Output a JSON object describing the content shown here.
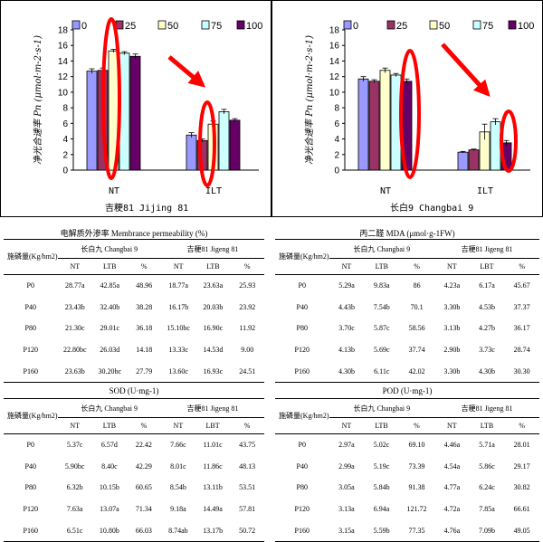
{
  "chart_data": [
    {
      "type": "bar",
      "title": "吉粳81 Jijing 81",
      "ylabel": "净光合速率 Pn (μmol·m-2·s-1)",
      "categories": [
        "NT",
        "ILT"
      ],
      "ylim": [
        0,
        18
      ],
      "yticks": [
        0,
        2,
        4,
        6,
        8,
        10,
        12,
        14,
        16,
        18
      ],
      "legend_position": "top-left",
      "series": [
        {
          "name": "0",
          "values": [
            12.7,
            4.5
          ],
          "errors": [
            0.3,
            0.3
          ],
          "color": "#9999FF"
        },
        {
          "name": "25",
          "values": [
            12.8,
            3.8
          ],
          "errors": [
            0.3,
            0.2
          ],
          "color": "#993366"
        },
        {
          "name": "50",
          "values": [
            15.3,
            5.9
          ],
          "errors": [
            0.2,
            0.4
          ],
          "color": "#FFFFCC"
        },
        {
          "name": "75",
          "values": [
            15.0,
            7.5
          ],
          "errors": [
            0.2,
            0.3
          ],
          "color": "#CCFFFF"
        },
        {
          "name": "100",
          "values": [
            14.6,
            6.4
          ],
          "errors": [
            0.3,
            0.2
          ],
          "color": "#660066"
        }
      ],
      "annotations": [
        "red-ellipse",
        "red-arrow"
      ]
    },
    {
      "type": "bar",
      "title": "长白9 Changbai 9",
      "ylabel": "净光合速率 Pn (μmol·m-2·s-1)",
      "categories": [
        "NT",
        "ILT"
      ],
      "ylim": [
        0,
        18
      ],
      "yticks": [
        0,
        2,
        4,
        6,
        8,
        10,
        12,
        14,
        16,
        18
      ],
      "legend_position": "top-left",
      "series": [
        {
          "name": "0",
          "values": [
            11.7,
            2.3
          ],
          "errors": [
            0.3,
            0.1
          ],
          "color": "#9999FF"
        },
        {
          "name": "25",
          "values": [
            11.4,
            2.6
          ],
          "errors": [
            0.2,
            0.1
          ],
          "color": "#993366"
        },
        {
          "name": "50",
          "values": [
            12.8,
            4.9
          ],
          "errors": [
            0.3,
            1.0
          ],
          "color": "#FFFFCC"
        },
        {
          "name": "75",
          "values": [
            12.2,
            6.2
          ],
          "errors": [
            0.2,
            0.4
          ],
          "color": "#CCFFFF"
        },
        {
          "name": "100",
          "values": [
            11.4,
            3.5
          ],
          "errors": [
            0.3,
            0.3
          ],
          "color": "#660066"
        }
      ],
      "annotations": [
        "red-ellipse",
        "red-arrow"
      ]
    }
  ],
  "tables": [
    {
      "caption": "电解质外渗率 Membrance permeability (%)",
      "rowhead": "施磷量(Kg/hm2)",
      "group1": "长白九 Changbai 9",
      "group2": "吉粳81 Jigeng 81",
      "cols": [
        "NT",
        "LTB",
        "%",
        "NT",
        "LTB",
        "%"
      ],
      "rows": [
        [
          "P0",
          "28.77a",
          "42.85a",
          "48.96",
          "18.77a",
          "23.63a",
          "25.93"
        ],
        [
          "P40",
          "23.43b",
          "32.40b",
          "38.28",
          "16.17b",
          "20.03b",
          "23.92"
        ],
        [
          "P80",
          "21.30c",
          "29.01c",
          "36.18",
          "15.10bc",
          "16.90c",
          "11.92"
        ],
        [
          "P120",
          "22.80bc",
          "26.03d",
          "14.18",
          "13.33c",
          "14.53d",
          "9.00"
        ],
        [
          "P160",
          "23.63b",
          "30.20bc",
          "27.79",
          "13.60c",
          "16.93c",
          "24.51"
        ]
      ]
    },
    {
      "caption": "丙二醛 MDA (μmol·g-1FW)",
      "rowhead": "施磷量(Kg/hm2)",
      "group1": "长白九 Changbai 9",
      "group2": "吉粳81 Jigeng 81",
      "cols": [
        "NT",
        "LTB",
        "%",
        "NT",
        "LBT",
        "%"
      ],
      "rows": [
        [
          "P0",
          "5.29a",
          "9.83a",
          "86",
          "4.23a",
          "6.17a",
          "45.67"
        ],
        [
          "P40",
          "4.43b",
          "7.54b",
          "70.1",
          "3.30b",
          "4.53b",
          "37.37"
        ],
        [
          "P80",
          "3.70c",
          "5.87c",
          "58.56",
          "3.13b",
          "4.27b",
          "36.17"
        ],
        [
          "P120",
          "4.13b",
          "5.69c",
          "37.74",
          "2.90b",
          "3.73c",
          "28.74"
        ],
        [
          "P160",
          "4.30b",
          "6.11c",
          "42.02",
          "3.30b",
          "4.30b",
          "30.30"
        ]
      ]
    },
    {
      "caption": "SOD (U·mg-1)",
      "rowhead": "施磷量(Kg/hm2)",
      "group1": "长白九 Changbai 9",
      "group2": "吉粳81 Jigeng 81",
      "cols": [
        "NT",
        "LTB",
        "%",
        "NT",
        "LBT",
        "%"
      ],
      "rows": [
        [
          "P0",
          "5.37c",
          "6.57d",
          "22.42",
          "7.66c",
          "11.01c",
          "43.75"
        ],
        [
          "P40",
          "5.90bc",
          "8.40c",
          "42.29",
          "8.01c",
          "11.86c",
          "48.13"
        ],
        [
          "P80",
          "6.32b",
          "10.15b",
          "60.65",
          "8.54b",
          "13.11b",
          "53.51"
        ],
        [
          "P120",
          "7.63a",
          "13.07a",
          "71.34",
          "9.18a",
          "14.49a",
          "57.81"
        ],
        [
          "P160",
          "6.51c",
          "10.80b",
          "66.03",
          "8.74ab",
          "13.17b",
          "50.72"
        ]
      ]
    },
    {
      "caption": "POD (U·mg-1)",
      "rowhead": "施磷量(Kg/hm2)",
      "group1": "长白九 Changbai 9",
      "group2": "吉粳81 Jigeng 81",
      "cols": [
        "NT",
        "LTB",
        "%",
        "NT",
        "LTB",
        "%"
      ],
      "rows": [
        [
          "P0",
          "2.97a",
          "5.02c",
          "69.10",
          "4.46a",
          "5.71a",
          "28.01"
        ],
        [
          "P40",
          "2.99a",
          "5.19c",
          "73.39",
          "4.54a",
          "5.86c",
          "29.17"
        ],
        [
          "P80",
          "3.05a",
          "5.84b",
          "91.38",
          "4.77a",
          "6.24c",
          "30.82"
        ],
        [
          "P120",
          "3.13a",
          "6.94a",
          "121.72",
          "4.72a",
          "7.85a",
          "66.61"
        ],
        [
          "P160",
          "3.15a",
          "5.59b",
          "77.35",
          "4.76a",
          "7.09b",
          "49.05"
        ]
      ]
    }
  ]
}
